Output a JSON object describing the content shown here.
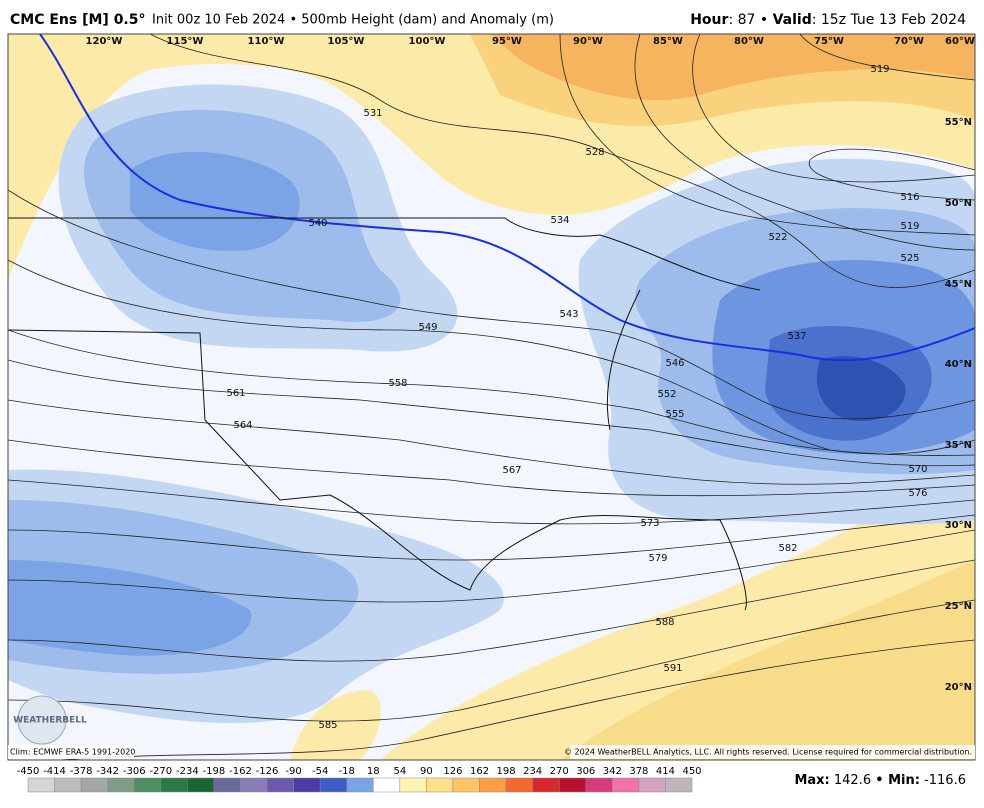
{
  "header": {
    "model": "CMC Ens [M] 0.5°",
    "description": "Init 00z 10 Feb 2024 • 500mb Height (dam) and Anomaly (m)",
    "hour_label": "Hour",
    "hour_value": ": 87 • ",
    "valid_label": "Valid",
    "valid_value": ": 15z Tue 13 Feb 2024"
  },
  "map": {
    "longitude_labels": [
      "120°W",
      "115°W",
      "110°W",
      "105°W",
      "100°W",
      "95°W",
      "90°W",
      "85°W",
      "80°W",
      "75°W",
      "70°W",
      "60°W"
    ],
    "latitude_labels": [
      "55°N",
      "50°N",
      "45°N",
      "40°N",
      "35°N",
      "30°N",
      "25°N",
      "20°N"
    ],
    "contour_labels": [
      531,
      528,
      534,
      540,
      543,
      549,
      546,
      552,
      555,
      558,
      561,
      564,
      567,
      573,
      579,
      582,
      570,
      576,
      588,
      591,
      585,
      516,
      519,
      522,
      525,
      537,
      519
    ],
    "logo": "WEATHERBELL"
  },
  "footer": {
    "climatology": "Clim: ECMWF ERA-5 1991-2020",
    "copyright": "© 2024 WeatherBELL Analytics, LLC. All rights reserved. License required for commercial distribution."
  },
  "colorbar": {
    "ticks": [
      -450,
      -414,
      -378,
      -342,
      -306,
      -270,
      -234,
      -198,
      -162,
      -126,
      -90,
      -54,
      -18,
      18,
      54,
      90,
      126,
      162,
      198,
      234,
      270,
      306,
      342,
      378,
      414,
      450
    ]
  },
  "stats": {
    "max_label": "Max:",
    "max": 142.6,
    "min_label": "• Min:",
    "min": -116.6
  }
}
